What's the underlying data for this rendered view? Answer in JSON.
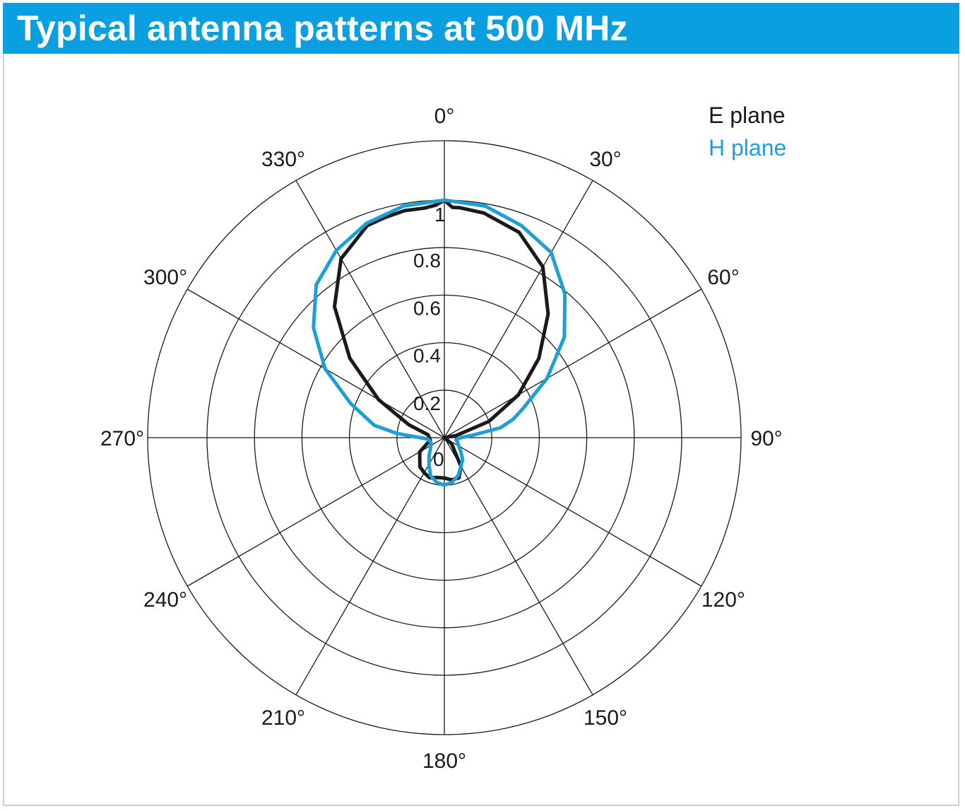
{
  "header": {
    "title": "Typical antenna patterns at 500 MHz"
  },
  "colors": {
    "header_bg": "#0a9fe0",
    "e_plane": "#1a1a1a",
    "h_plane": "#1d9fd8",
    "grid": "#1a1a1a"
  },
  "chart_data": {
    "type": "polar-line",
    "title": "Typical antenna patterns at 500 MHz",
    "radial_range": [
      0,
      1
    ],
    "radial_ticks": [
      {
        "value": 0,
        "label": "0"
      },
      {
        "value": 0.2,
        "label": "0.2"
      },
      {
        "value": 0.4,
        "label": "0.4"
      },
      {
        "value": 0.6,
        "label": "0.6"
      },
      {
        "value": 0.8,
        "label": "0.8"
      },
      {
        "value": 1,
        "label": "1"
      }
    ],
    "angular_ticks": [
      {
        "angle": 0,
        "label": "0°"
      },
      {
        "angle": 30,
        "label": "30°"
      },
      {
        "angle": 60,
        "label": "60°"
      },
      {
        "angle": 90,
        "label": "90°"
      },
      {
        "angle": 120,
        "label": "120°"
      },
      {
        "angle": 150,
        "label": "150°"
      },
      {
        "angle": 180,
        "label": "180°"
      },
      {
        "angle": 210,
        "label": "210°"
      },
      {
        "angle": 240,
        "label": "240°"
      },
      {
        "angle": 270,
        "label": "270°"
      },
      {
        "angle": 300,
        "label": "300°"
      },
      {
        "angle": 330,
        "label": "330°"
      }
    ],
    "grid": true,
    "legend_position": "top-right",
    "series": [
      {
        "name": "E plane",
        "color": "#1a1a1a",
        "points": [
          [
            0,
            1.0
          ],
          [
            2,
            0.97
          ],
          [
            4,
            0.97
          ],
          [
            10,
            0.96
          ],
          [
            20,
            0.92
          ],
          [
            30,
            0.83
          ],
          [
            40,
            0.68
          ],
          [
            50,
            0.52
          ],
          [
            60,
            0.36
          ],
          [
            70,
            0.2
          ],
          [
            80,
            0.05
          ],
          [
            90,
            0.0
          ],
          [
            130,
            0.04
          ],
          [
            150,
            0.14
          ],
          [
            160,
            0.18
          ],
          [
            170,
            0.18
          ],
          [
            180,
            0.17
          ],
          [
            190,
            0.17
          ],
          [
            200,
            0.18
          ],
          [
            210,
            0.17
          ],
          [
            220,
            0.16
          ],
          [
            240,
            0.12
          ],
          [
            260,
            0.06
          ],
          [
            280,
            0.07
          ],
          [
            290,
            0.16
          ],
          [
            300,
            0.32
          ],
          [
            310,
            0.52
          ],
          [
            320,
            0.72
          ],
          [
            330,
            0.87
          ],
          [
            340,
            0.95
          ],
          [
            345,
            0.96
          ],
          [
            350,
            0.97
          ],
          [
            355,
            0.97
          ],
          [
            358,
            0.98
          ],
          [
            0,
            1.0
          ]
        ]
      },
      {
        "name": "H plane",
        "color": "#1d9fd8",
        "points": [
          [
            0,
            1.0
          ],
          [
            10,
            0.99
          ],
          [
            20,
            0.95
          ],
          [
            30,
            0.9
          ],
          [
            40,
            0.79
          ],
          [
            50,
            0.66
          ],
          [
            60,
            0.5
          ],
          [
            70,
            0.35
          ],
          [
            75,
            0.3
          ],
          [
            80,
            0.24
          ],
          [
            85,
            0.12
          ],
          [
            90,
            0.07
          ],
          [
            100,
            0.05
          ],
          [
            110,
            0.06
          ],
          [
            120,
            0.07
          ],
          [
            130,
            0.09
          ],
          [
            140,
            0.12
          ],
          [
            150,
            0.14
          ],
          [
            160,
            0.17
          ],
          [
            170,
            0.19
          ],
          [
            180,
            0.2
          ],
          [
            190,
            0.19
          ],
          [
            200,
            0.17
          ],
          [
            210,
            0.13
          ],
          [
            220,
            0.1
          ],
          [
            235,
            0.07
          ],
          [
            250,
            0.06
          ],
          [
            265,
            0.07
          ],
          [
            275,
            0.2
          ],
          [
            280,
            0.3
          ],
          [
            290,
            0.42
          ],
          [
            300,
            0.58
          ],
          [
            310,
            0.72
          ],
          [
            320,
            0.84
          ],
          [
            330,
            0.91
          ],
          [
            340,
            0.96
          ],
          [
            350,
            0.99
          ],
          [
            0,
            1.0
          ]
        ]
      }
    ]
  }
}
